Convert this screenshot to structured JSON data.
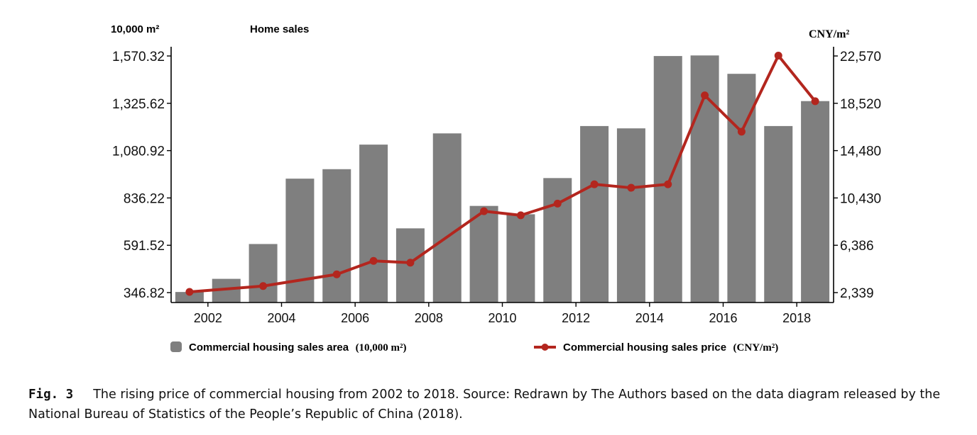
{
  "chart_data": {
    "type": "bar+line",
    "title": "Home sales",
    "left_axis_unit": "10,000 m²",
    "right_axis_unit": "CNY/m²",
    "left_ticks": [
      "1,570.32",
      "1,325.62",
      "1,080.92",
      "836.22",
      "591.52",
      "346.82"
    ],
    "right_ticks": [
      "22,570",
      "18,520",
      "14,480",
      "10,430",
      "6,386",
      "2,339"
    ],
    "x_tick_labels": [
      "2002",
      "2004",
      "2006",
      "2008",
      "2010",
      "2012",
      "2014",
      "2016",
      "2018"
    ],
    "left_ylim": [
      346.82,
      1570.32
    ],
    "right_ylim": [
      2339,
      22570
    ],
    "series": [
      {
        "name": "Commercial housing sales area",
        "unit": "(10,000 m²)",
        "type": "bar",
        "color": "#7f7f7f",
        "x": [
          2001.5,
          2002.5,
          2003.5,
          2004.5,
          2005.5,
          2006.5,
          2007.5,
          2008.5,
          2009.5,
          2010.5,
          2011.5,
          2012.5,
          2013.5,
          2014.5,
          2015.5,
          2016.5,
          2017.5,
          2018.5
        ],
        "values": [
          350,
          418,
          598,
          936,
          985,
          1112,
          679,
          1170,
          795,
          752,
          939,
          1208,
          1196,
          1570,
          1573,
          1478,
          1208,
          1337
        ]
      },
      {
        "name": "Commercial housing sales price",
        "unit": "(CNY/m²)",
        "type": "line",
        "color": "#b3261e",
        "x": [
          2001.5,
          2003.5,
          2005.5,
          2006.5,
          2007.5,
          2009.5,
          2010.5,
          2011.5,
          2012.5,
          2013.5,
          2014.5,
          2015.5,
          2016.5,
          2017.5,
          2018.5
        ],
        "values": [
          2400,
          2900,
          3900,
          5050,
          4900,
          9300,
          8950,
          9950,
          11600,
          11300,
          11600,
          19200,
          16100,
          22600,
          18700
        ]
      }
    ],
    "caption_label": "Fig. 3",
    "caption_text": "The rising price of commercial housing from 2002 to 2018. Source: Redrawn by The Authors based on the data diagram released by the National Bureau of Statistics of the People’s Republic of China (2018)."
  }
}
